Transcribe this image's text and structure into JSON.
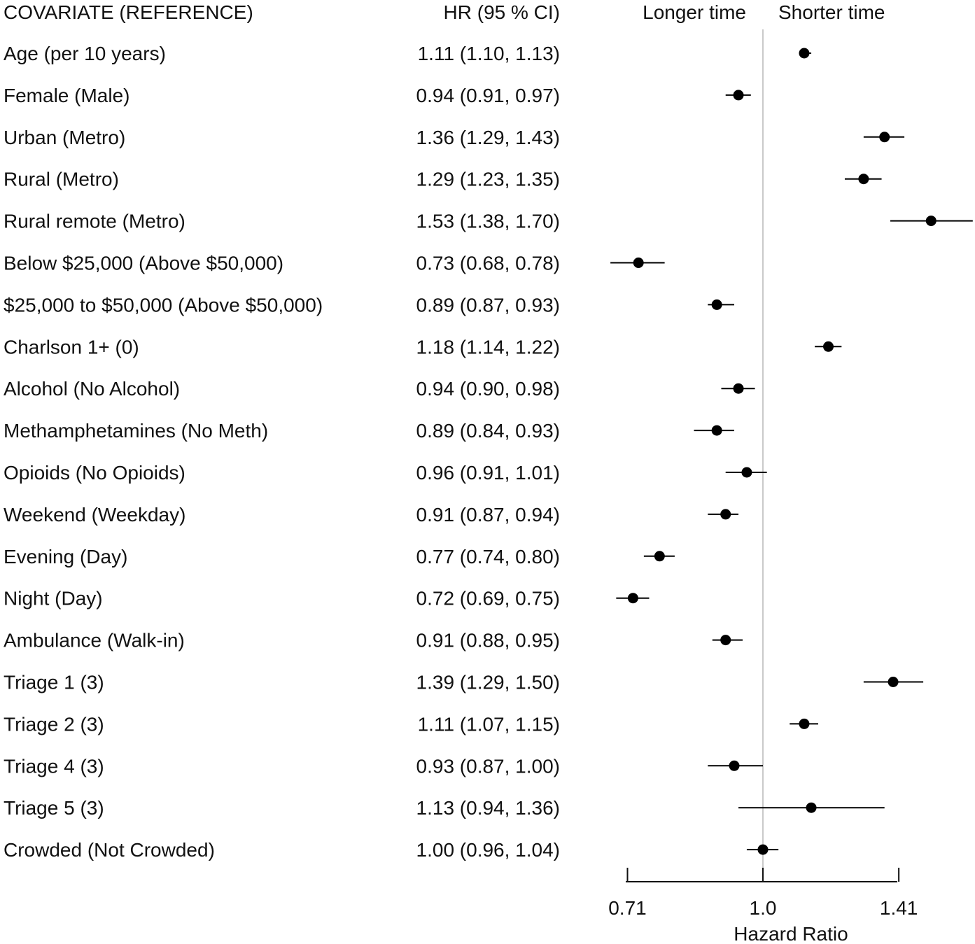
{
  "chart_data": {
    "type": "forest",
    "title": "",
    "headers": {
      "covariate": "COVARIATE (REFERENCE)",
      "hr": "HR (95 % CI)",
      "left_direction": "Longer time",
      "right_direction": "Shorter time"
    },
    "xlabel": "Hazard Ratio",
    "x_scale": "log",
    "reference_line": 1.0,
    "ticks": [
      {
        "value": 0.71,
        "label": "0.71"
      },
      {
        "value": 1.0,
        "label": "1.0"
      },
      {
        "value": 1.41,
        "label": "1.41"
      }
    ],
    "rows": [
      {
        "label": "Age (per 10 years)",
        "hr_text": "1.11 (1.10, 1.13)",
        "hr": 1.11,
        "lo": 1.1,
        "hi": 1.13
      },
      {
        "label": "Female (Male)",
        "hr_text": "0.94 (0.91, 0.97)",
        "hr": 0.94,
        "lo": 0.91,
        "hi": 0.97
      },
      {
        "label": "Urban (Metro)",
        "hr_text": "1.36 (1.29, 1.43)",
        "hr": 1.36,
        "lo": 1.29,
        "hi": 1.43
      },
      {
        "label": "Rural (Metro)",
        "hr_text": "1.29 (1.23, 1.35)",
        "hr": 1.29,
        "lo": 1.23,
        "hi": 1.35
      },
      {
        "label": "Rural remote (Metro)",
        "hr_text": "1.53 (1.38, 1.70)",
        "hr": 1.53,
        "lo": 1.38,
        "hi": 1.7
      },
      {
        "label": "Below $25,000 (Above $50,000)",
        "hr_text": "0.73 (0.68, 0.78)",
        "hr": 0.73,
        "lo": 0.68,
        "hi": 0.78
      },
      {
        "label": "$25,000 to $50,000 (Above $50,000)",
        "hr_text": "0.89 (0.87, 0.93)",
        "hr": 0.89,
        "lo": 0.87,
        "hi": 0.93
      },
      {
        "label": "Charlson 1+ (0)",
        "hr_text": "1.18 (1.14, 1.22)",
        "hr": 1.18,
        "lo": 1.14,
        "hi": 1.22
      },
      {
        "label": "Alcohol (No Alcohol)",
        "hr_text": "0.94 (0.90, 0.98)",
        "hr": 0.94,
        "lo": 0.9,
        "hi": 0.98
      },
      {
        "label": "Methamphetamines (No Meth)",
        "hr_text": "0.89 (0.84, 0.93)",
        "hr": 0.89,
        "lo": 0.84,
        "hi": 0.93
      },
      {
        "label": "Opioids (No Opioids)",
        "hr_text": "0.96 (0.91, 1.01)",
        "hr": 0.96,
        "lo": 0.91,
        "hi": 1.01
      },
      {
        "label": "Weekend (Weekday)",
        "hr_text": "0.91 (0.87, 0.94)",
        "hr": 0.91,
        "lo": 0.87,
        "hi": 0.94
      },
      {
        "label": "Evening (Day)",
        "hr_text": "0.77 (0.74, 0.80)",
        "hr": 0.77,
        "lo": 0.74,
        "hi": 0.8
      },
      {
        "label": "Night (Day)",
        "hr_text": "0.72 (0.69, 0.75)",
        "hr": 0.72,
        "lo": 0.69,
        "hi": 0.75
      },
      {
        "label": "Ambulance (Walk-in)",
        "hr_text": "0.91 (0.88, 0.95)",
        "hr": 0.91,
        "lo": 0.88,
        "hi": 0.95
      },
      {
        "label": "Triage 1 (3)",
        "hr_text": "1.39 (1.29, 1.50)",
        "hr": 1.39,
        "lo": 1.29,
        "hi": 1.5
      },
      {
        "label": "Triage 2 (3)",
        "hr_text": "1.11 (1.07, 1.15)",
        "hr": 1.11,
        "lo": 1.07,
        "hi": 1.15
      },
      {
        "label": "Triage 4 (3)",
        "hr_text": "0.93 (0.87, 1.00)",
        "hr": 0.93,
        "lo": 0.87,
        "hi": 1.0
      },
      {
        "label": "Triage 5 (3)",
        "hr_text": "1.13 (0.94, 1.36)",
        "hr": 1.13,
        "lo": 0.94,
        "hi": 1.36
      },
      {
        "label": "Crowded (Not Crowded)",
        "hr_text": "1.00 (0.96, 1.04)",
        "hr": 1.0,
        "lo": 0.96,
        "hi": 1.04
      }
    ],
    "colors": {
      "marker": "#000000",
      "reference_line": "#b8b8b8",
      "text": "#111111"
    }
  }
}
